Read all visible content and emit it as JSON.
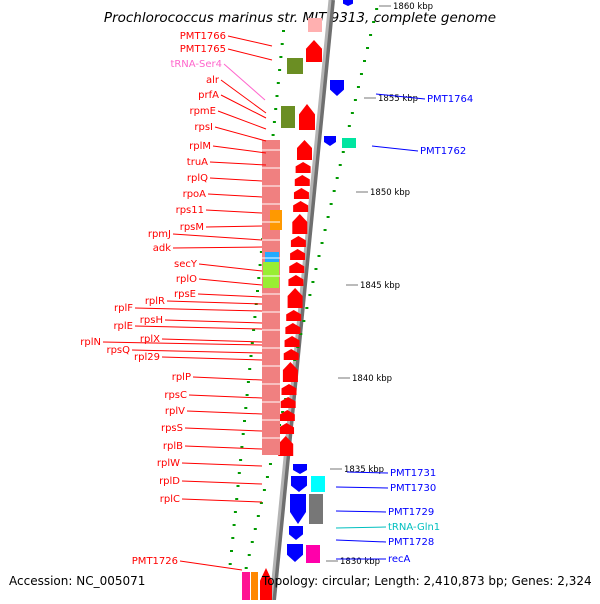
{
  "title": "Prochlorococcus marinus str. MIT 9313, complete genome",
  "accession": "Accession: NC_005071",
  "topology": "Topology: circular; Length: 2,410,873 bp; Genes: 2,324",
  "colors": {
    "forward_gene": "#ff0000",
    "reverse_gene": "#0000ff",
    "rna_label": "#ff66cc",
    "trna_right": "#00bfbf",
    "backbone": "#999999",
    "ruler": "#009900",
    "rrna_block": "#f08080",
    "olive": "#6b8e23"
  },
  "kbp_labels": [
    {
      "text": "1860 kbp"
    },
    {
      "text": "1855 kbp"
    },
    {
      "text": "1850 kbp"
    },
    {
      "text": "1845 kbp"
    },
    {
      "text": "1840 kbp"
    },
    {
      "text": "1835 kbp"
    },
    {
      "text": "1830 kbp"
    }
  ],
  "left_labels": [
    {
      "text": "PMT1766",
      "color": "#ff0000"
    },
    {
      "text": "PMT1765",
      "color": "#ff0000"
    },
    {
      "text": "tRNA-Ser4",
      "color": "#ff66cc"
    },
    {
      "text": "alr",
      "color": "#ff0000"
    },
    {
      "text": "prfA",
      "color": "#ff0000"
    },
    {
      "text": "rpmE",
      "color": "#ff0000"
    },
    {
      "text": "rpsI",
      "color": "#ff0000"
    },
    {
      "text": "rplM",
      "color": "#ff0000"
    },
    {
      "text": "truA",
      "color": "#ff0000"
    },
    {
      "text": "rplQ",
      "color": "#ff0000"
    },
    {
      "text": "rpoA",
      "color": "#ff0000"
    },
    {
      "text": "rps11",
      "color": "#ff0000"
    },
    {
      "text": "rpsM",
      "color": "#ff0000"
    },
    {
      "text": "rpmJ",
      "color": "#ff0000"
    },
    {
      "text": "adk",
      "color": "#ff0000"
    },
    {
      "text": "secY",
      "color": "#ff0000"
    },
    {
      "text": "rplO",
      "color": "#ff0000"
    },
    {
      "text": "rpsE",
      "color": "#ff0000"
    },
    {
      "text": "rplR",
      "color": "#ff0000"
    },
    {
      "text": "rplF",
      "color": "#ff0000"
    },
    {
      "text": "rpsH",
      "color": "#ff0000"
    },
    {
      "text": "rplE",
      "color": "#ff0000"
    },
    {
      "text": "rplX",
      "color": "#ff0000"
    },
    {
      "text": "rplN",
      "color": "#ff0000"
    },
    {
      "text": "rpsQ",
      "color": "#ff0000"
    },
    {
      "text": "rpl29",
      "color": "#ff0000"
    },
    {
      "text": "rplP",
      "color": "#ff0000"
    },
    {
      "text": "rpsC",
      "color": "#ff0000"
    },
    {
      "text": "rplV",
      "color": "#ff0000"
    },
    {
      "text": "rpsS",
      "color": "#ff0000"
    },
    {
      "text": "rplB",
      "color": "#ff0000"
    },
    {
      "text": "rplW",
      "color": "#ff0000"
    },
    {
      "text": "rplD",
      "color": "#ff0000"
    },
    {
      "text": "rplC",
      "color": "#ff0000"
    },
    {
      "text": "PMT1726",
      "color": "#ff0000"
    }
  ],
  "right_labels": [
    {
      "text": "PMT1764",
      "color": "#0000ff"
    },
    {
      "text": "PMT1762",
      "color": "#0000ff"
    },
    {
      "text": "PMT1731",
      "color": "#0000ff"
    },
    {
      "text": "PMT1730",
      "color": "#0000ff"
    },
    {
      "text": "PMT1729",
      "color": "#0000ff"
    },
    {
      "text": "tRNA-Gln1",
      "color": "#00bfbf"
    },
    {
      "text": "PMT1728",
      "color": "#0000ff"
    },
    {
      "text": "recA",
      "color": "#0000ff"
    }
  ]
}
